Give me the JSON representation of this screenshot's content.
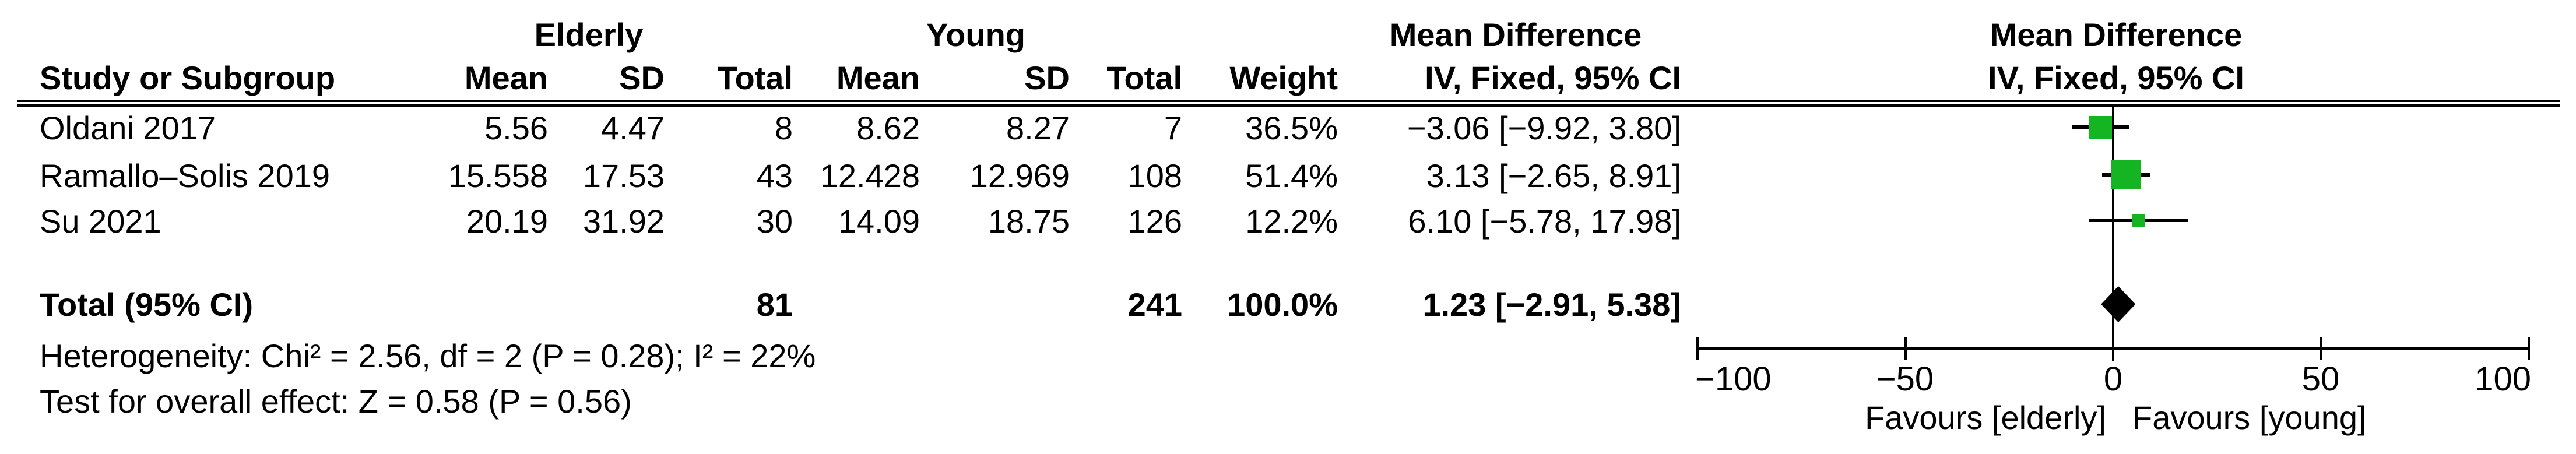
{
  "table": {
    "group_headers": {
      "elderly": "Elderly",
      "young": "Young",
      "mean_difference": "Mean Difference"
    },
    "plot_header": {
      "line1": "Mean Difference",
      "line2": "IV, Fixed, 95% CI"
    },
    "columns": {
      "study": "Study or Subgroup",
      "mean1": "Mean",
      "sd1": "SD",
      "total1": "Total",
      "mean2": "Mean",
      "sd2": "SD",
      "total2": "Total",
      "weight": "Weight",
      "md_ci": "IV, Fixed, 95% CI"
    },
    "rows": [
      {
        "study": "Oldani 2017",
        "mean1": "5.56",
        "sd1": "4.47",
        "total1": "8",
        "mean2": "8.62",
        "sd2": "8.27",
        "total2": "7",
        "weight": "36.5%",
        "md_ci": "−3.06 [−9.92, 3.80]"
      },
      {
        "study": "Ramallo–Solis 2019",
        "mean1": "15.558",
        "sd1": "17.53",
        "total1": "43",
        "mean2": "12.428",
        "sd2": "12.969",
        "total2": "108",
        "weight": "51.4%",
        "md_ci": "3.13 [−2.65, 8.91]"
      },
      {
        "study": "Su 2021",
        "mean1": "20.19",
        "sd1": "31.92",
        "total1": "30",
        "mean2": "14.09",
        "sd2": "18.75",
        "total2": "126",
        "weight": "12.2%",
        "md_ci": "6.10 [−5.78, 17.98]"
      }
    ],
    "total_row": {
      "label": "Total (95% CI)",
      "total1": "81",
      "total2": "241",
      "weight": "100.0%",
      "md_ci": "1.23 [−2.91, 5.38]"
    },
    "footnotes": {
      "heterogeneity": "Heterogeneity: Chi² = 2.56, df = 2 (P = 0.28); I² = 22%",
      "overall_effect": "Test for overall effect: Z = 0.58 (P = 0.56)"
    }
  },
  "chart_data": {
    "type": "scatter",
    "variant": "forest_plot",
    "title": "Mean Difference, IV, Fixed, 95% CI",
    "effect_measure": "Mean Difference (IV, Fixed, 95% CI)",
    "axis": {
      "min": -100,
      "max": 100,
      "ticks": [
        -100,
        -50,
        0,
        50,
        100
      ],
      "tick_labels": [
        "−100",
        "−50",
        "0",
        "50",
        "100"
      ]
    },
    "favours_left": "Favours [elderly]",
    "favours_right": "Favours [young]",
    "studies": [
      {
        "name": "Oldani 2017",
        "md": -3.06,
        "ci_low": -9.92,
        "ci_high": 3.8,
        "weight_pct": 36.5
      },
      {
        "name": "Ramallo–Solis 2019",
        "md": 3.13,
        "ci_low": -2.65,
        "ci_high": 8.91,
        "weight_pct": 51.4
      },
      {
        "name": "Su 2021",
        "md": 6.1,
        "ci_low": -5.78,
        "ci_high": 17.98,
        "weight_pct": 12.2
      }
    ],
    "total": {
      "md": 1.23,
      "ci_low": -2.91,
      "ci_high": 5.38
    },
    "heterogeneity": "Chi² = 2.56, df = 2 (P = 0.28); I² = 22%",
    "overall_effect": "Z = 0.58 (P = 0.56)",
    "marker_color": "#15b422",
    "line_color": "#000000",
    "legend_position": "none",
    "grid": false
  }
}
